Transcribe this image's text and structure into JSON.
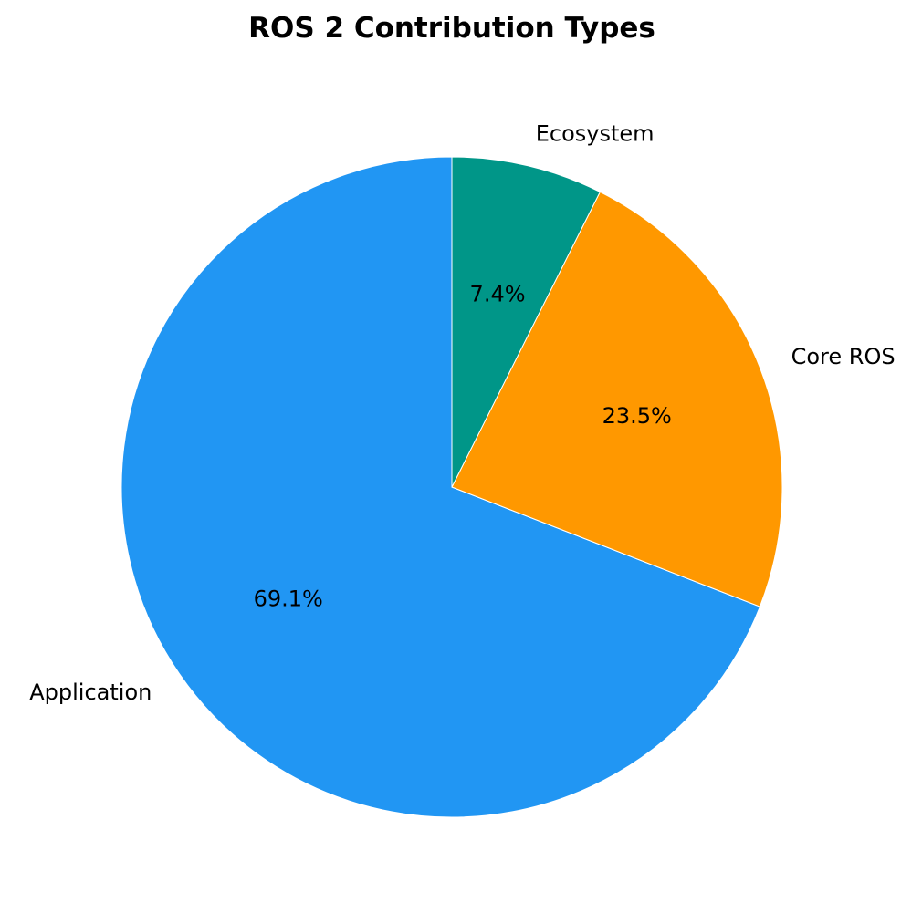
{
  "chart_data": {
    "type": "pie",
    "title": "ROS 2 Contribution Types",
    "categories": [
      "Application",
      "Core ROS",
      "Ecosystem"
    ],
    "values": [
      69.1,
      23.5,
      7.4
    ],
    "value_labels": [
      "69.1%",
      "23.5%",
      "7.4%"
    ],
    "colors": [
      "#2196F3",
      "#FF9800",
      "#009688"
    ],
    "start_angle_deg": 90,
    "direction": "counterclockwise",
    "legend": "none"
  }
}
